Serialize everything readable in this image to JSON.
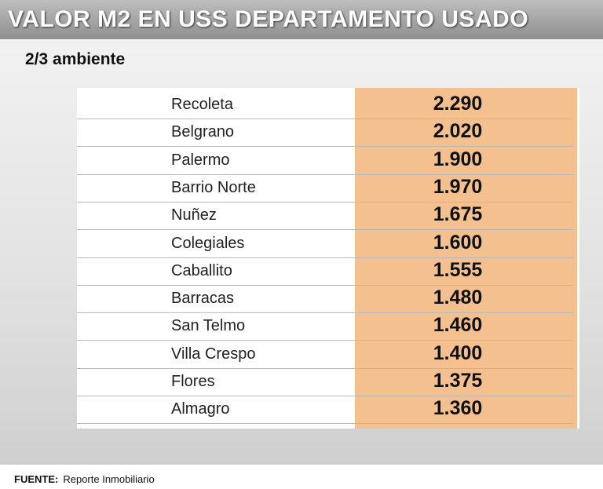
{
  "header": {
    "title": "VALOR M2 EN USS DEPARTAMENTO USADO",
    "subtitle": "2/3 ambiente"
  },
  "table": {
    "rows": [
      [
        "Recoleta",
        "2.290"
      ],
      [
        "Belgrano",
        "2.020"
      ],
      [
        "Palermo",
        "1.900"
      ],
      [
        "Barrio Norte",
        "1.970"
      ],
      [
        "Nuñez",
        "1.675"
      ],
      [
        "Colegiales",
        "1.600"
      ],
      [
        "Caballito",
        "1.555"
      ],
      [
        "Barracas",
        "1.480"
      ],
      [
        "San Telmo",
        "1.460"
      ],
      [
        "Villa Crespo",
        "1.400"
      ],
      [
        "Flores",
        "1.375"
      ],
      [
        "Almagro",
        "1.360"
      ]
    ]
  },
  "footer": {
    "label": "FUENTE:",
    "source": "Reporte Inmobiliario"
  }
}
